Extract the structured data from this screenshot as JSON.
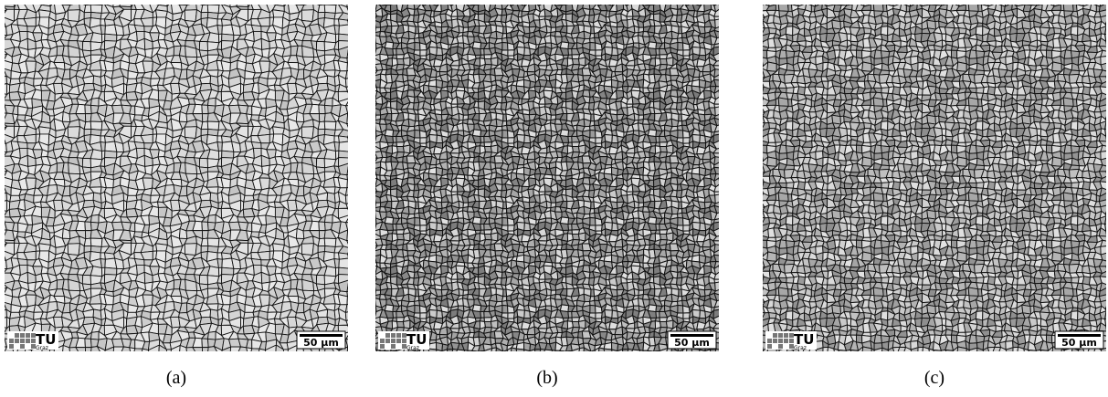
{
  "panels": [
    {
      "caption": "(a)",
      "logo": "TU",
      "logo_sub": "Graz",
      "scale_bar": "50 µm"
    },
    {
      "caption": "(b)",
      "logo": "TU",
      "logo_sub": "Graz",
      "scale_bar": "50 µm"
    },
    {
      "caption": "(c)",
      "logo": "TU",
      "logo_sub": "Graz",
      "scale_bar": "50 µm"
    }
  ]
}
